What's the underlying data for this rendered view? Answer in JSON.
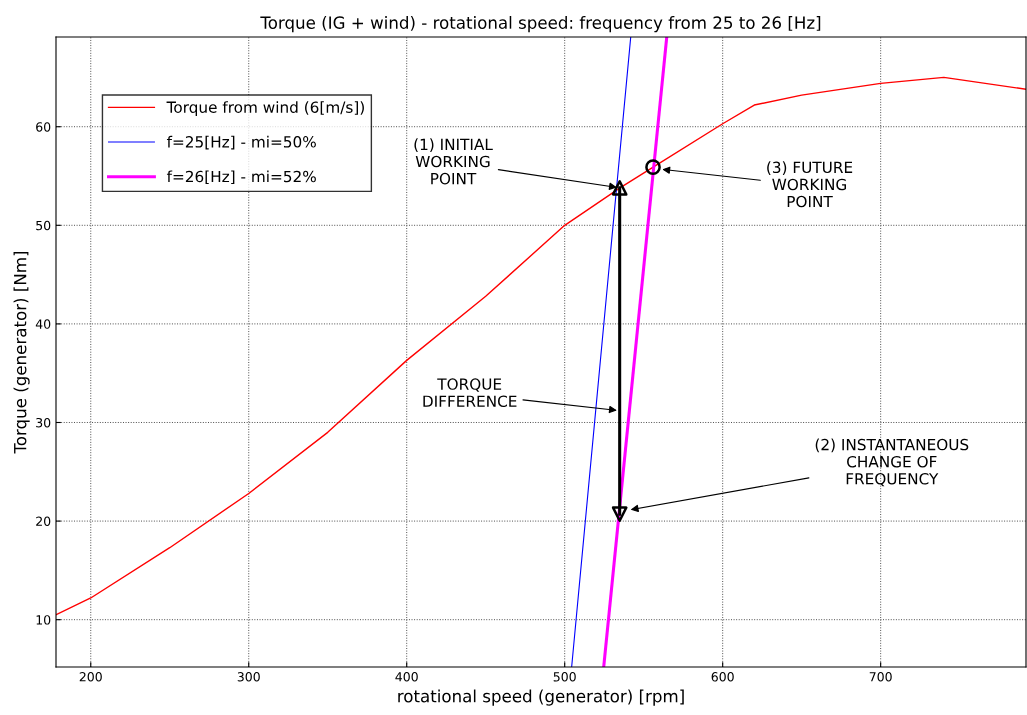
{
  "chart_data": {
    "type": "line",
    "title": "Torque (IG + wind) - rotational speed: frequency from 25 to 26 [Hz]",
    "xlabel": "rotational speed (generator) [rpm]",
    "ylabel": "Torque (generator) [Nm]",
    "xlim": [
      178,
      792
    ],
    "ylim": [
      5.2,
      69.1
    ],
    "xticks": [
      200,
      300,
      400,
      500,
      600,
      700
    ],
    "yticks": [
      10,
      20,
      30,
      40,
      50,
      60
    ],
    "grid": true,
    "legend": "top left",
    "series": [
      {
        "name": "Torque from wind (6[m/s])",
        "color": "#ff0000",
        "x": [
          178,
          200,
          250,
          300,
          350,
          400,
          450,
          500,
          535,
          556,
          600,
          620,
          650,
          700,
          740,
          792
        ],
        "values": [
          10.5,
          12.2,
          17.3,
          22.8,
          29,
          36.3,
          42.8,
          50,
          53.8,
          55.9,
          60.3,
          62.2,
          63.2,
          64.4,
          65,
          63.8
        ]
      },
      {
        "name": "f=25[Hz] - mi=50%",
        "color": "#0000ff",
        "x": [
          504.4,
          541.8
        ],
        "values": [
          5.2,
          69.1
        ]
      },
      {
        "name": "f=26[Hz] - mi=52%",
        "color": "#ff00ff",
        "x": [
          524.7,
          564.6
        ],
        "values": [
          5.2,
          69.1
        ]
      },
      {
        "type": "line",
        "color": "#000000",
        "x": [
          534.8,
          534.8
        ],
        "values": [
          53.8,
          20.7
        ]
      },
      {
        "type": "scatter",
        "color": "#000000",
        "marker": "triangle",
        "x": [
          534.8
        ],
        "values": [
          53.8
        ]
      },
      {
        "type": "scatter",
        "color": "#000000",
        "marker": "triangle_down",
        "x": [
          534.8
        ],
        "values": [
          20.7
        ]
      },
      {
        "type": "scatter",
        "color": "#000000",
        "marker": "circle",
        "x": [
          555.9
        ],
        "values": [
          55.9
        ]
      }
    ],
    "annotations": [
      {
        "text": "(1) INITIAL\nWORKING\nPOINT",
        "x": 534.8,
        "y": 53.8
      },
      {
        "text": "TORQUE\nDIFFERENCE",
        "x": 534.8,
        "y": 31.2
      },
      {
        "text": "(2) INSTANTANEOUS\nCHANGE OF\nFREQUENCY",
        "x": 540,
        "y": 21.1
      },
      {
        "text": "(3) FUTURE\nWORKING\nPOINT",
        "x": 560,
        "y": 55.7
      }
    ]
  }
}
